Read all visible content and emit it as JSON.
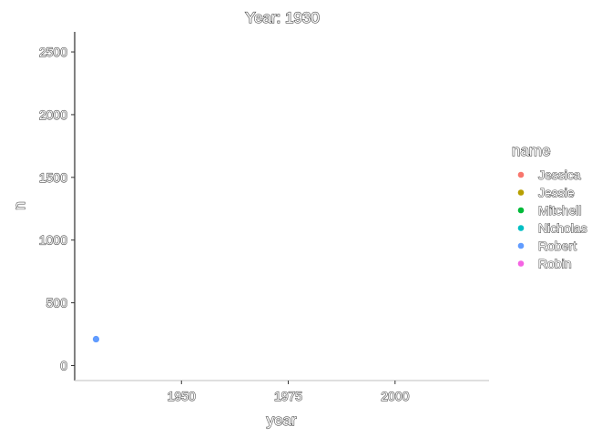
{
  "chart_data": {
    "type": "scatter",
    "title": "Year: 1930",
    "xlabel": "year",
    "ylabel": "n",
    "xlim": [
      1925,
      2022
    ],
    "ylim": [
      -120,
      2660
    ],
    "x_ticks": [
      1950,
      1975,
      2000
    ],
    "y_ticks": [
      0,
      500,
      1000,
      1500,
      2000,
      2500
    ],
    "grid": false,
    "legend": {
      "title": "name",
      "position": "right",
      "entries": [
        {
          "label": "Jessica",
          "color": "#F8766D"
        },
        {
          "label": "Jessie",
          "color": "#B79F00"
        },
        {
          "label": "Mitchell",
          "color": "#00BA38"
        },
        {
          "label": "Nicholas",
          "color": "#00BFC4"
        },
        {
          "label": "Robert",
          "color": "#619CFF"
        },
        {
          "label": "Robin",
          "color": "#F564E3"
        }
      ]
    },
    "series": [
      {
        "name": "Robert",
        "color": "#619CFF",
        "points": [
          {
            "x": 1930,
            "y": 210
          }
        ]
      }
    ]
  }
}
